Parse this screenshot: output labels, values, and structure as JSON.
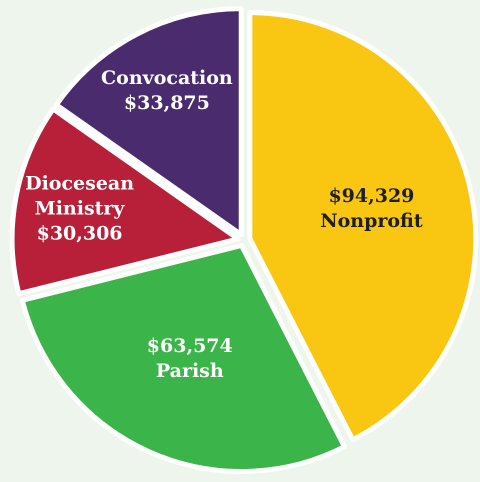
{
  "chart_data": {
    "type": "pie",
    "categories": [
      "Nonprofit",
      "Parish",
      "Diocesean Ministry",
      "Convocation"
    ],
    "values": [
      94329,
      63574,
      30306,
      33875
    ],
    "value_labels": [
      "$94,329",
      "$63,574",
      "$30,306",
      "$33,875"
    ],
    "colors": [
      "#f9c712",
      "#3bb54a",
      "#b8203a",
      "#4a2c6e"
    ]
  }
}
